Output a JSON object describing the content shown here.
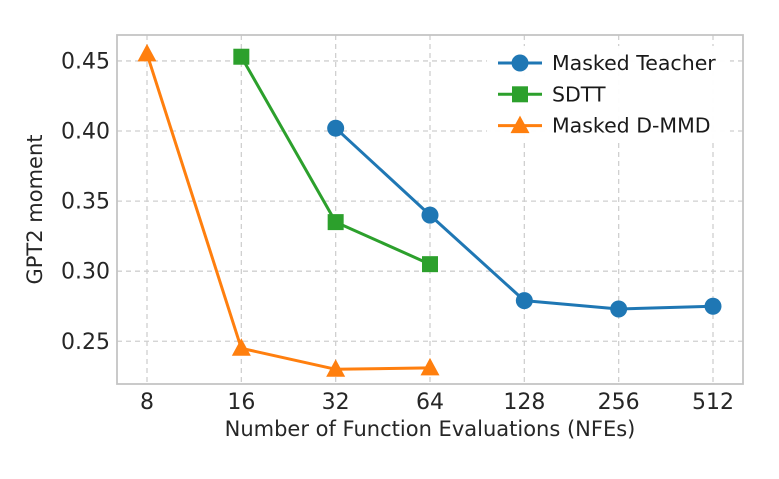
{
  "chart_data": {
    "type": "line",
    "title": "",
    "xlabel": "Number of Function Evaluations (NFEs)",
    "ylabel": "GPT2 moment",
    "x_scale": "log2",
    "x_ticks": [
      8,
      16,
      32,
      64,
      128,
      256,
      512
    ],
    "x_tick_labels": [
      "8",
      "16",
      "32",
      "64",
      "128",
      "256",
      "512"
    ],
    "y_ticks": [
      0.25,
      0.3,
      0.35,
      0.4,
      0.45
    ],
    "y_tick_labels": [
      "0.25",
      "0.30",
      "0.35",
      "0.40",
      "0.45"
    ],
    "ylim": [
      0.2195,
      0.4685
    ],
    "grid": {
      "visible": true,
      "line_style": "dashed",
      "color": "#cfcfcf"
    },
    "axes": {
      "spine_color": "#c4c4c4",
      "background": "#ffffff",
      "text_color": "#262626"
    },
    "legend": {
      "position": "upper-right",
      "frame": false
    },
    "series": [
      {
        "name": "Masked Teacher",
        "color": "#1f77b4",
        "marker": "circle",
        "points": [
          [
            32,
            0.402
          ],
          [
            64,
            0.34
          ],
          [
            128,
            0.279
          ],
          [
            256,
            0.273
          ],
          [
            512,
            0.275
          ]
        ]
      },
      {
        "name": "SDTT",
        "color": "#2ca02c",
        "marker": "square",
        "points": [
          [
            16,
            0.453
          ],
          [
            32,
            0.335
          ],
          [
            64,
            0.305
          ]
        ]
      },
      {
        "name": "Masked D-MMD",
        "color": "#ff7f0e",
        "marker": "triangle",
        "points": [
          [
            8,
            0.455
          ],
          [
            16,
            0.245
          ],
          [
            32,
            0.23
          ],
          [
            64,
            0.231
          ]
        ]
      }
    ]
  }
}
